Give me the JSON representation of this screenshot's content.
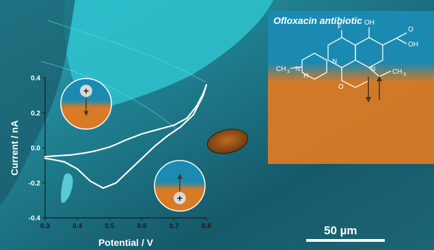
{
  "chart_data": {
    "type": "line",
    "xlabel": "Potential / V",
    "ylabel": "Current / nA",
    "xlim": [
      0.3,
      0.8
    ],
    "ylim": [
      -0.4,
      0.4
    ],
    "xticks": [
      "0.3",
      "0.4",
      "0.5",
      "0.6",
      "0.7",
      "0.8"
    ],
    "yticks": [
      "-0.4",
      "-0.2",
      "0.0",
      "0.2",
      "0.4"
    ],
    "grid": false,
    "series": [
      {
        "x": [
          0.3,
          0.34,
          0.38,
          0.42,
          0.45,
          0.48,
          0.5,
          0.52,
          0.55,
          0.6,
          0.65,
          0.7,
          0.74,
          0.77,
          0.79,
          0.8,
          0.79,
          0.76,
          0.72,
          0.68,
          0.64,
          0.6,
          0.56,
          0.52,
          0.48,
          0.44,
          0.4,
          0.36,
          0.32,
          0.3
        ],
        "y": [
          -0.05,
          -0.045,
          -0.04,
          -0.03,
          -0.02,
          -0.005,
          0.005,
          0.02,
          0.045,
          0.08,
          0.105,
          0.13,
          0.17,
          0.24,
          0.31,
          0.36,
          0.3,
          0.19,
          0.12,
          0.07,
          0.01,
          -0.06,
          -0.13,
          -0.2,
          -0.23,
          -0.19,
          -0.12,
          -0.08,
          -0.065,
          -0.06
        ]
      }
    ]
  },
  "overlay": {
    "panel_title": "Ofloxacin antibiotic",
    "scale_label": "50 µm",
    "molecule_labels": [
      "OH",
      "O",
      "OH",
      "F",
      "N",
      "N",
      "N",
      "O",
      "H",
      "CH",
      "3"
    ],
    "ion_symbol": "+",
    "colors": {
      "surface_cyan": "#2fc3cf",
      "surface_dark": "#1a5a6a",
      "inset_blue": "#1b8bb4",
      "inset_orange": "#d97a25",
      "curve": "#ffffff",
      "particle": "#a65a1c"
    }
  }
}
